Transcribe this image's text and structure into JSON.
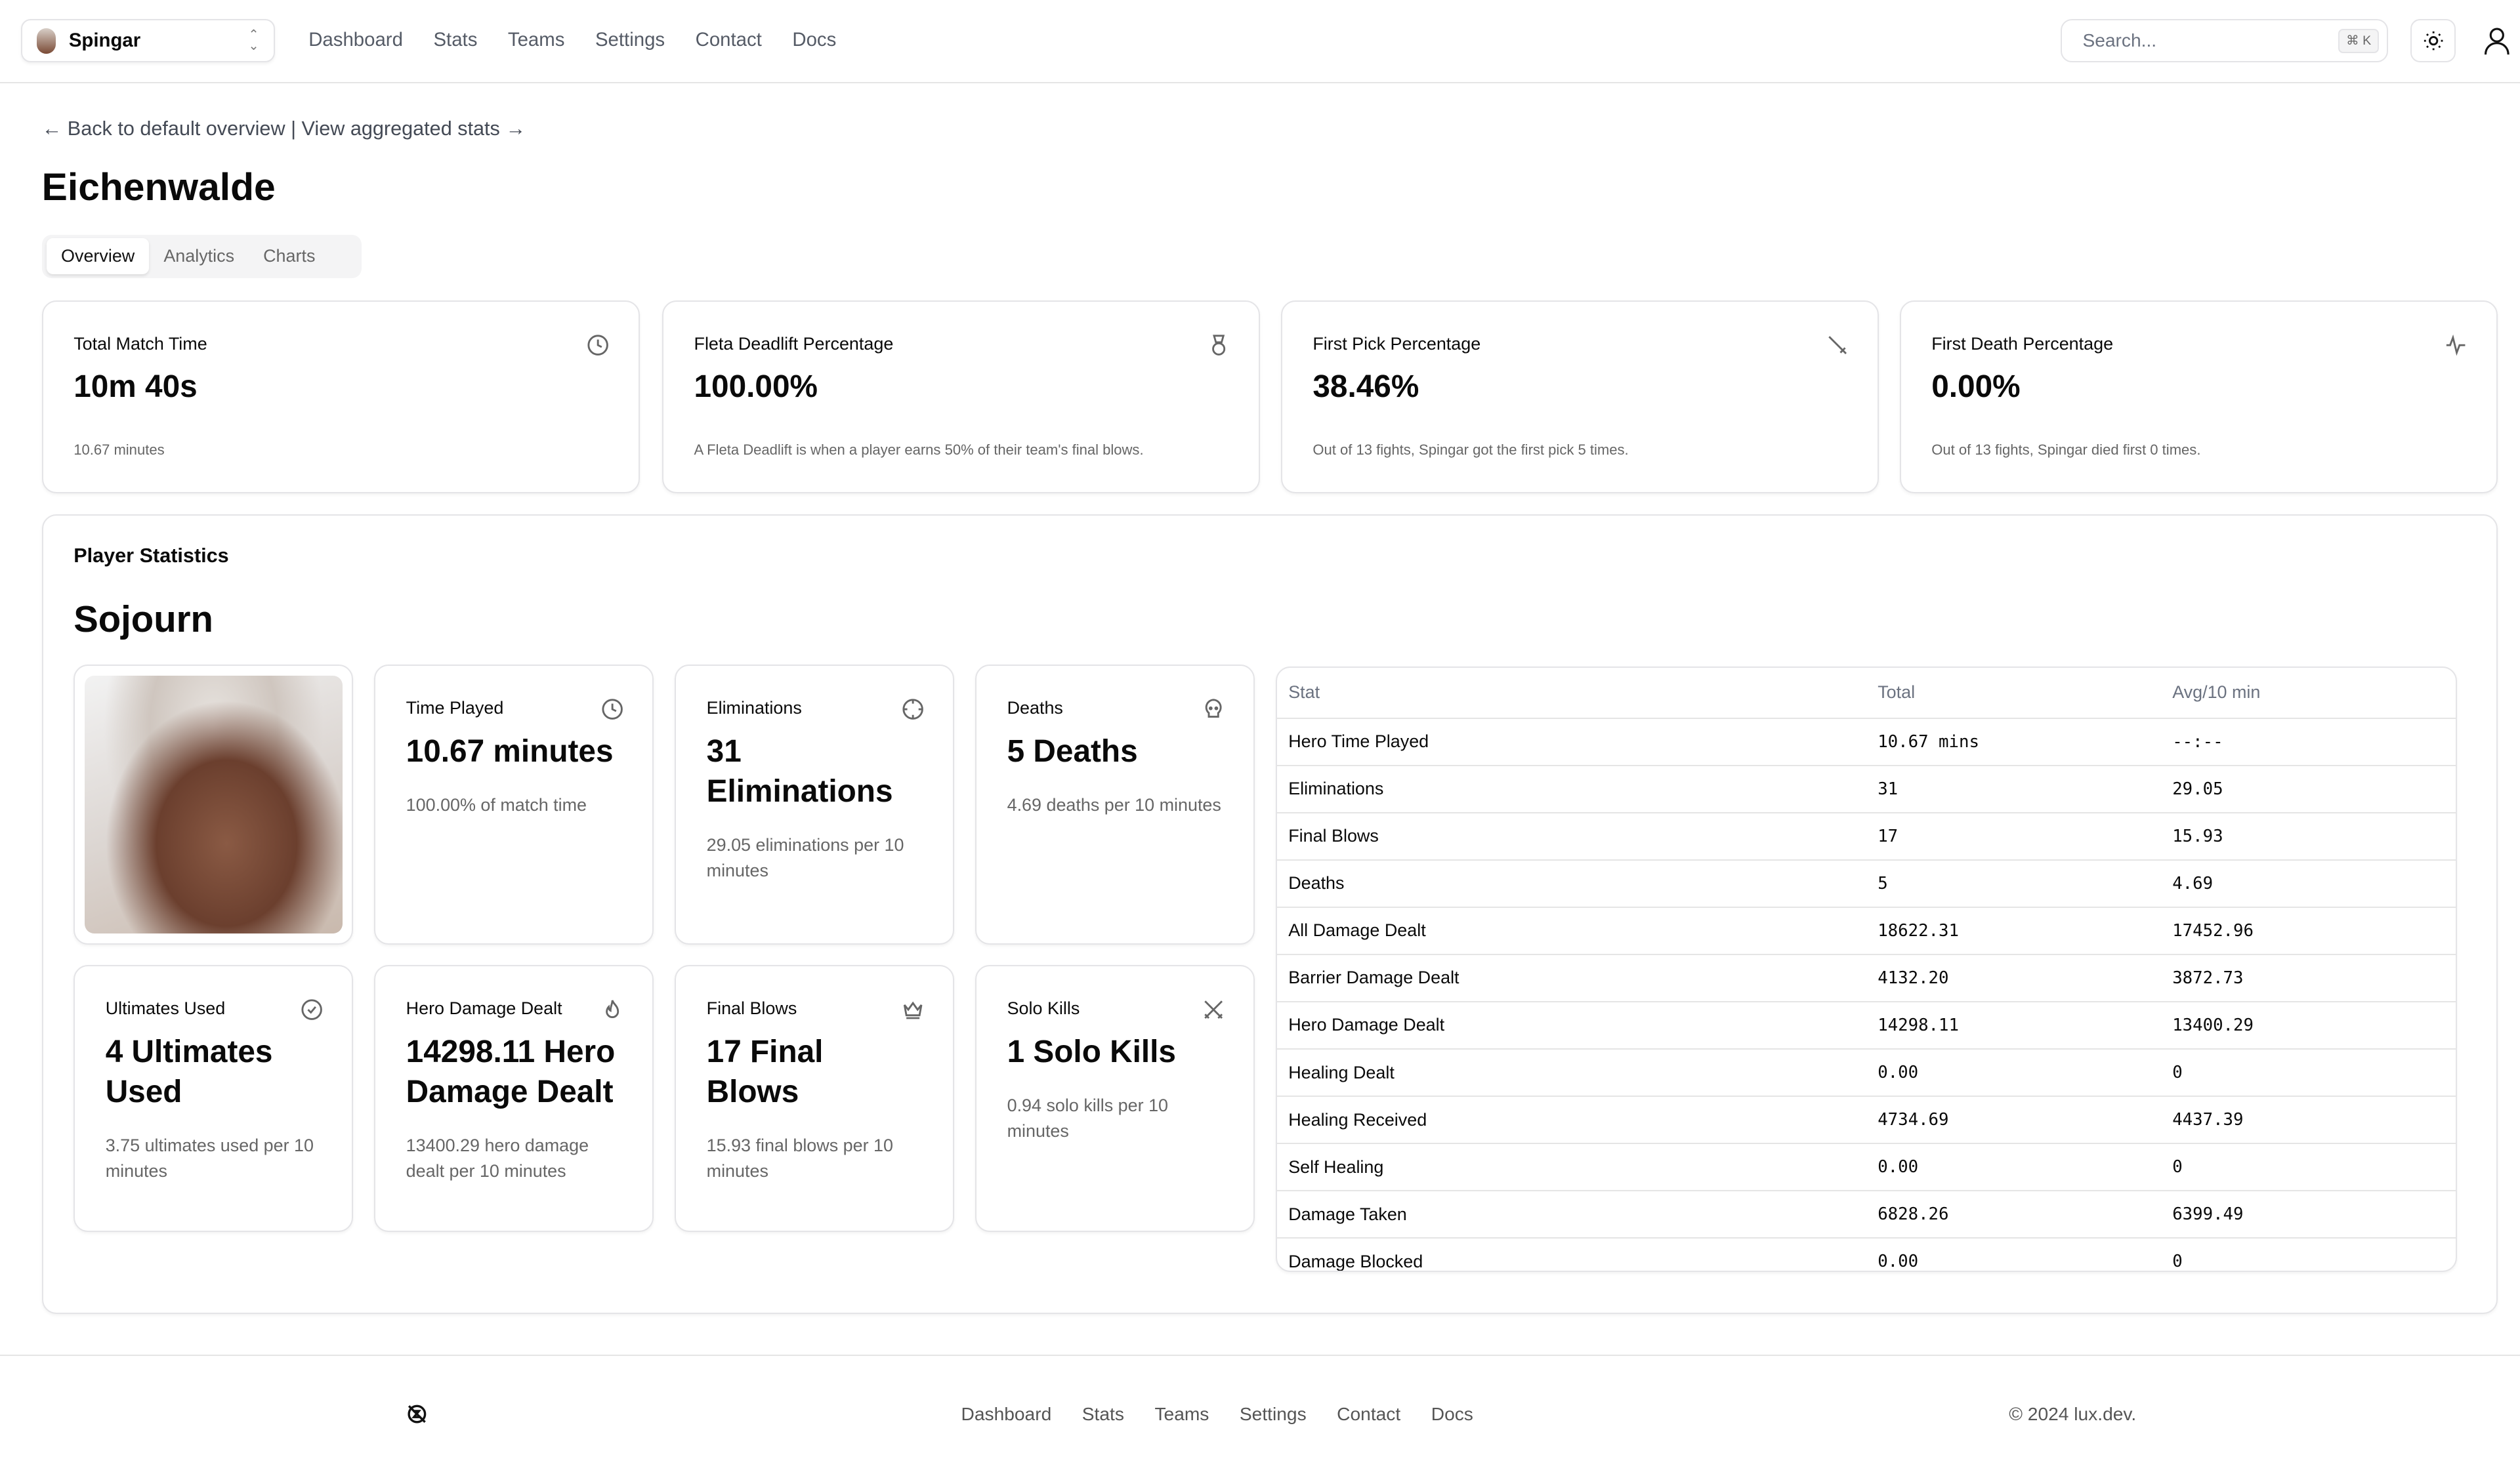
{
  "header": {
    "team": "Spingar",
    "nav": [
      "Dashboard",
      "Stats",
      "Teams",
      "Settings",
      "Contact",
      "Docs"
    ],
    "search_placeholder": "Search...",
    "shortcut": "⌘ K"
  },
  "back_link": {
    "back": "← Back to default overview",
    "sep": " | ",
    "forward": "View aggregated stats →"
  },
  "page_title": "Eichenwalde",
  "tabs": [
    "Overview",
    "Analytics",
    "Charts"
  ],
  "summary_cards": [
    {
      "label": "Total Match Time",
      "value": "10m 40s",
      "desc": "10.67 minutes",
      "icon": "clock-icon"
    },
    {
      "label": "Fleta Deadlift Percentage",
      "value": "100.00%",
      "desc": "A Fleta Deadlift is when a player earns 50% of their team's final blows.",
      "icon": "medal-icon"
    },
    {
      "label": "First Pick Percentage",
      "value": "38.46%",
      "desc": "Out of 13 fights, Spingar got the first pick 5 times.",
      "icon": "sword-icon"
    },
    {
      "label": "First Death Percentage",
      "value": "0.00%",
      "desc": "Out of 13 fights, Spingar died first 0 times.",
      "icon": "activity-icon"
    }
  ],
  "player_stats": {
    "title": "Player Statistics",
    "hero": "Sojourn",
    "cards": [
      {
        "label": "Time Played",
        "value": "10.67 minutes",
        "desc": "100.00% of match time",
        "icon": "clock-icon"
      },
      {
        "label": "Eliminations",
        "value": "31 Eliminations",
        "desc": "29.05 eliminations per 10 minutes",
        "icon": "crosshair-icon"
      },
      {
        "label": "Deaths",
        "value": "5 Deaths",
        "desc": "4.69 deaths per 10 minutes",
        "icon": "skull-icon"
      },
      {
        "label": "Ultimates Used",
        "value": "4 Ultimates Used",
        "desc": "3.75 ultimates used per 10 minutes",
        "icon": "check-circle-icon"
      },
      {
        "label": "Hero Damage Dealt",
        "value": "14298.11 Hero Damage Dealt",
        "desc": "13400.29 hero damage dealt per 10 minutes",
        "icon": "flame-icon"
      },
      {
        "label": "Final Blows",
        "value": "17 Final Blows",
        "desc": "15.93 final blows per 10 minutes",
        "icon": "crown-icon"
      },
      {
        "label": "Solo Kills",
        "value": "1 Solo Kills",
        "desc": "0.94 solo kills per 10 minutes",
        "icon": "swords-icon"
      }
    ],
    "table": {
      "headers": [
        "Stat",
        "Total",
        "Avg/10 min"
      ],
      "rows": [
        [
          "Hero Time Played",
          "10.67 mins",
          "--:--"
        ],
        [
          "Eliminations",
          "31",
          "29.05"
        ],
        [
          "Final Blows",
          "17",
          "15.93"
        ],
        [
          "Deaths",
          "5",
          "4.69"
        ],
        [
          "All Damage Dealt",
          "18622.31",
          "17452.96"
        ],
        [
          "Barrier Damage Dealt",
          "4132.20",
          "3872.73"
        ],
        [
          "Hero Damage Dealt",
          "14298.11",
          "13400.29"
        ],
        [
          "Healing Dealt",
          "0.00",
          "0"
        ],
        [
          "Healing Received",
          "4734.69",
          "4437.39"
        ],
        [
          "Self Healing",
          "0.00",
          "0"
        ],
        [
          "Damage Taken",
          "6828.26",
          "6399.49"
        ],
        [
          "Damage Blocked",
          "0.00",
          "0"
        ]
      ]
    }
  },
  "footer": {
    "nav": [
      "Dashboard",
      "Stats",
      "Teams",
      "Settings",
      "Contact",
      "Docs"
    ],
    "copyright": "© 2024 lux.dev."
  }
}
